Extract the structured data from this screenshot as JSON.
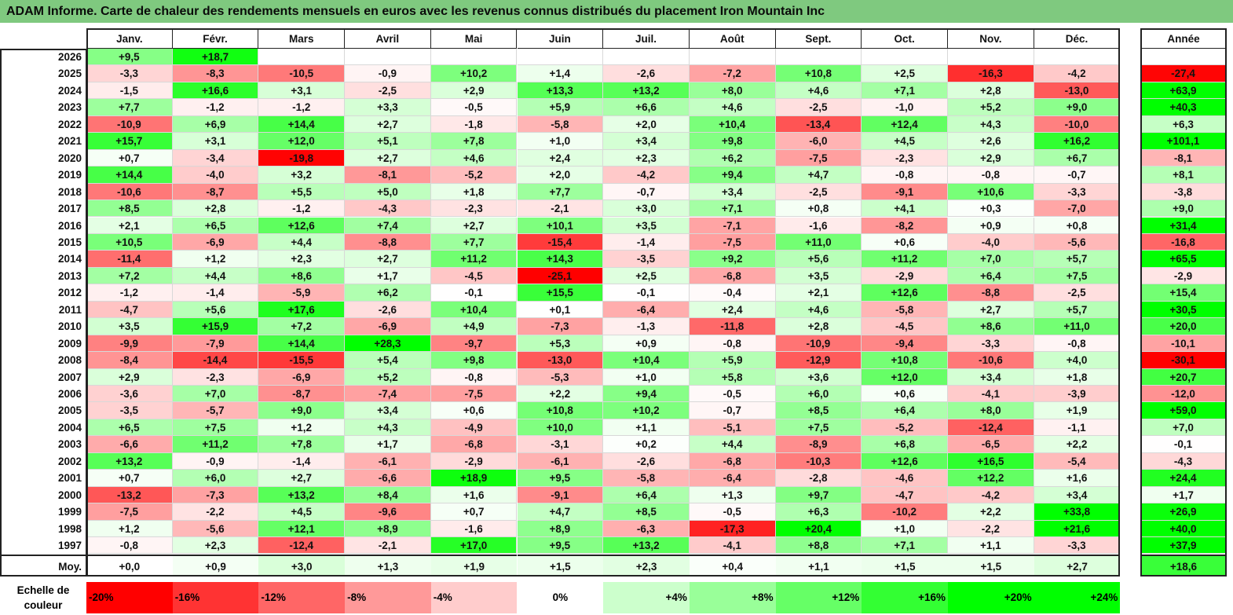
{
  "title": "ADAM Informe. Carte de chaleur des rendements mensuels en euros avec les revenus connus distribués du placement Iron Mountain Inc",
  "chart_data": {
    "type": "heatmap",
    "columns": [
      "Janv.",
      "Févr.",
      "Mars",
      "Avril",
      "Mai",
      "Juin",
      "Juil.",
      "Août",
      "Sept.",
      "Oct.",
      "Nov.",
      "Déc."
    ],
    "year_column_label": "Année",
    "rows": [
      {
        "year": "2026",
        "values": [
          "+9,5",
          "+18,7",
          "",
          "",
          "",
          "",
          "",
          "",
          "",
          "",
          "",
          ""
        ],
        "annual": ""
      },
      {
        "year": "2025",
        "values": [
          "-3,3",
          "-8,3",
          "-10,5",
          "-0,9",
          "+10,2",
          "+1,4",
          "-2,6",
          "-7,2",
          "+10,8",
          "+2,5",
          "-16,3",
          "-4,2"
        ],
        "annual": "-27,4"
      },
      {
        "year": "2024",
        "values": [
          "-1,5",
          "+16,6",
          "+3,1",
          "-2,5",
          "+2,9",
          "+13,3",
          "+13,2",
          "+8,0",
          "+4,6",
          "+7,1",
          "+2,8",
          "-13,0"
        ],
        "annual": "+63,9"
      },
      {
        "year": "2023",
        "values": [
          "+7,7",
          "-1,2",
          "-1,2",
          "+3,3",
          "-0,5",
          "+5,9",
          "+6,6",
          "+4,6",
          "-2,5",
          "-1,0",
          "+5,2",
          "+9,0"
        ],
        "annual": "+40,3"
      },
      {
        "year": "2022",
        "values": [
          "-10,9",
          "+6,9",
          "+14,4",
          "+2,7",
          "-1,8",
          "-5,8",
          "+2,0",
          "+10,4",
          "-13,4",
          "+12,4",
          "+4,3",
          "-10,0"
        ],
        "annual": "+6,3"
      },
      {
        "year": "2021",
        "values": [
          "+15,7",
          "+3,1",
          "+12,0",
          "+5,1",
          "+7,8",
          "+1,0",
          "+3,4",
          "+9,8",
          "-6,0",
          "+4,5",
          "+2,6",
          "+16,2"
        ],
        "annual": "+101,1"
      },
      {
        "year": "2020",
        "values": [
          "+0,7",
          "-3,4",
          "-19,8",
          "+2,7",
          "+4,6",
          "+2,4",
          "+2,3",
          "+6,2",
          "-7,5",
          "-2,3",
          "+2,9",
          "+6,7"
        ],
        "annual": "-8,1"
      },
      {
        "year": "2019",
        "values": [
          "+14,4",
          "-4,0",
          "+3,2",
          "-8,1",
          "-5,2",
          "+2,0",
          "-4,2",
          "+9,4",
          "+4,7",
          "-0,8",
          "-0,8",
          "-0,7"
        ],
        "annual": "+8,1"
      },
      {
        "year": "2018",
        "values": [
          "-10,6",
          "-8,7",
          "+5,5",
          "+5,0",
          "+1,8",
          "+7,7",
          "-0,7",
          "+3,4",
          "-2,5",
          "-9,1",
          "+10,6",
          "-3,3"
        ],
        "annual": "-3,8"
      },
      {
        "year": "2017",
        "values": [
          "+8,5",
          "+2,8",
          "-1,2",
          "-4,3",
          "-2,3",
          "-2,1",
          "+3,0",
          "+7,1",
          "+0,8",
          "+4,1",
          "+0,3",
          "-7,0"
        ],
        "annual": "+9,0"
      },
      {
        "year": "2016",
        "values": [
          "+2,1",
          "+6,5",
          "+12,6",
          "+7,4",
          "+2,7",
          "+10,1",
          "+3,5",
          "-7,1",
          "-1,6",
          "-8,2",
          "+0,9",
          "+0,8"
        ],
        "annual": "+31,4"
      },
      {
        "year": "2015",
        "values": [
          "+10,5",
          "-6,9",
          "+4,4",
          "-8,8",
          "+7,7",
          "-15,4",
          "-1,4",
          "-7,5",
          "+11,0",
          "+0,6",
          "-4,0",
          "-5,6"
        ],
        "annual": "-16,8"
      },
      {
        "year": "2014",
        "values": [
          "-11,4",
          "+1,2",
          "+2,3",
          "+2,7",
          "+11,2",
          "+14,3",
          "-3,5",
          "+9,2",
          "+5,6",
          "+11,2",
          "+7,0",
          "+5,7"
        ],
        "annual": "+65,5"
      },
      {
        "year": "2013",
        "values": [
          "+7,2",
          "+4,4",
          "+8,6",
          "+1,7",
          "-4,5",
          "-25,1",
          "+2,5",
          "-6,8",
          "+3,5",
          "-2,9",
          "+6,4",
          "+7,5"
        ],
        "annual": "-2,9"
      },
      {
        "year": "2012",
        "values": [
          "-1,2",
          "-1,4",
          "-5,9",
          "+6,2",
          "-0,1",
          "+15,5",
          "-0,1",
          "-0,4",
          "+2,1",
          "+12,6",
          "-8,8",
          "-2,5"
        ],
        "annual": "+15,4"
      },
      {
        "year": "2011",
        "values": [
          "-4,7",
          "+5,6",
          "+17,6",
          "-2,6",
          "+10,4",
          "+0,1",
          "-6,4",
          "+2,4",
          "+4,6",
          "-5,8",
          "+2,7",
          "+5,7"
        ],
        "annual": "+30,5"
      },
      {
        "year": "2010",
        "values": [
          "+3,5",
          "+15,9",
          "+7,2",
          "-6,9",
          "+4,9",
          "-7,3",
          "-1,3",
          "-11,8",
          "+2,8",
          "-4,5",
          "+8,6",
          "+11,0"
        ],
        "annual": "+20,0"
      },
      {
        "year": "2009",
        "values": [
          "-9,9",
          "-7,9",
          "+14,4",
          "+28,3",
          "-9,7",
          "+5,3",
          "+0,9",
          "-0,8",
          "-10,9",
          "-9,4",
          "-3,3",
          "-0,8"
        ],
        "annual": "-10,1"
      },
      {
        "year": "2008",
        "values": [
          "-8,4",
          "-14,4",
          "-15,5",
          "+5,4",
          "+9,8",
          "-13,0",
          "+10,4",
          "+5,9",
          "-12,9",
          "+10,8",
          "-10,6",
          "+4,0"
        ],
        "annual": "-30,1"
      },
      {
        "year": "2007",
        "values": [
          "+2,9",
          "-2,3",
          "-6,9",
          "+5,2",
          "-0,8",
          "-5,3",
          "+1,0",
          "+5,8",
          "+3,6",
          "+12,0",
          "+3,4",
          "+1,8"
        ],
        "annual": "+20,7"
      },
      {
        "year": "2006",
        "values": [
          "-3,6",
          "+7,0",
          "-8,7",
          "-7,4",
          "-7,5",
          "+2,2",
          "+9,4",
          "-0,5",
          "+6,0",
          "+0,6",
          "-4,1",
          "-3,9"
        ],
        "annual": "-12,0"
      },
      {
        "year": "2005",
        "values": [
          "-3,5",
          "-5,7",
          "+9,0",
          "+3,4",
          "+0,6",
          "+10,8",
          "+10,2",
          "-0,7",
          "+8,5",
          "+6,4",
          "+8,0",
          "+1,9"
        ],
        "annual": "+59,0"
      },
      {
        "year": "2004",
        "values": [
          "+6,5",
          "+7,5",
          "+1,2",
          "+4,3",
          "-4,9",
          "+10,0",
          "+1,1",
          "-5,1",
          "+7,5",
          "-5,2",
          "-12,4",
          "-1,1"
        ],
        "annual": "+7,0"
      },
      {
        "year": "2003",
        "values": [
          "-6,6",
          "+11,2",
          "+7,8",
          "+1,7",
          "-6,8",
          "-3,1",
          "+0,2",
          "+4,4",
          "-8,9",
          "+6,8",
          "-6,5",
          "+2,2"
        ],
        "annual": "-0,1"
      },
      {
        "year": "2002",
        "values": [
          "+13,2",
          "-0,9",
          "-1,4",
          "-6,1",
          "-2,9",
          "-6,1",
          "-2,6",
          "-6,8",
          "-10,3",
          "+12,6",
          "+16,5",
          "-5,4"
        ],
        "annual": "-4,3"
      },
      {
        "year": "2001",
        "values": [
          "+0,7",
          "+6,0",
          "+2,7",
          "-6,6",
          "+18,9",
          "+9,5",
          "-5,8",
          "-6,4",
          "-2,8",
          "-4,6",
          "+12,2",
          "+1,6"
        ],
        "annual": "+24,4"
      },
      {
        "year": "2000",
        "values": [
          "-13,2",
          "-7,3",
          "+13,2",
          "+8,4",
          "+1,6",
          "-9,1",
          "+6,4",
          "+1,3",
          "+9,7",
          "-4,7",
          "-4,2",
          "+3,4"
        ],
        "annual": "+1,7"
      },
      {
        "year": "1999",
        "values": [
          "-7,5",
          "-2,2",
          "+4,5",
          "-9,6",
          "+0,7",
          "+4,7",
          "+8,5",
          "-0,5",
          "+6,3",
          "-10,2",
          "+2,2",
          "+33,8"
        ],
        "annual": "+26,9"
      },
      {
        "year": "1998",
        "values": [
          "+1,2",
          "-5,6",
          "+12,1",
          "+8,9",
          "-1,6",
          "+8,9",
          "-6,3",
          "-17,3",
          "+20,4",
          "+1,0",
          "-2,2",
          "+21,6"
        ],
        "annual": "+40,0"
      },
      {
        "year": "1997",
        "values": [
          "-0,8",
          "+2,3",
          "-12,4",
          "-2,1",
          "+17,0",
          "+9,5",
          "+13,2",
          "-4,1",
          "+8,8",
          "+7,1",
          "+1,1",
          "-3,3"
        ],
        "annual": "+37,9"
      }
    ],
    "average": {
      "label": "Moy.",
      "values": [
        "+0,0",
        "+0,9",
        "+3,0",
        "+1,3",
        "+1,9",
        "+1,5",
        "+2,3",
        "+0,4",
        "+1,1",
        "+1,5",
        "+1,5",
        "+2,7"
      ],
      "annual": "+18,6"
    },
    "scale": {
      "label_line1": "Echelle de",
      "label_line2": "couleur",
      "steps": [
        "-20%",
        "-16%",
        "-12%",
        "-8%",
        "-4%",
        "0%",
        "+4%",
        "+8%",
        "+12%",
        "+16%",
        "+20%",
        "+24%"
      ]
    },
    "colors": {
      "negative_max": "#ff0000",
      "positive_max": "#00ff00",
      "neutral": "#ffffff",
      "title_bar": "#7fc97f"
    }
  }
}
